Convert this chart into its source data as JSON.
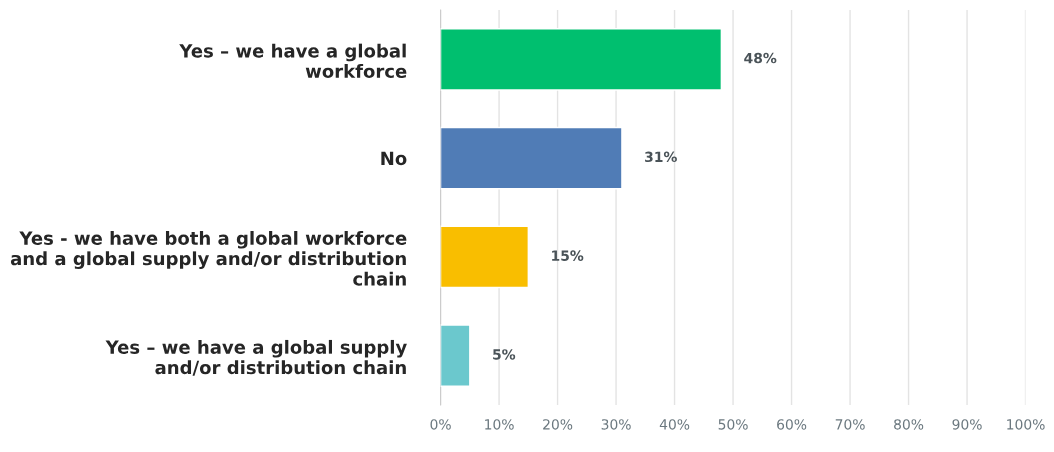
{
  "chart_data": {
    "type": "bar",
    "orientation": "horizontal",
    "categories": [
      "Yes – we have a global\nworkforce",
      "No",
      "Yes - we have both a global workforce\nand a global supply and/or distribution\nchain",
      "Yes – we have a global supply\nand/or distribution chain"
    ],
    "values": [
      48,
      31,
      15,
      5
    ],
    "colors": [
      "#00bf6f",
      "#507cb6",
      "#f9be00",
      "#6bc8cd"
    ],
    "value_labels": [
      "48%",
      "31%",
      "15%",
      "5%"
    ],
    "xlim": [
      0,
      100
    ],
    "xticks": [
      {
        "value": 0,
        "label": "0%"
      },
      {
        "value": 10,
        "label": "10%"
      },
      {
        "value": 20,
        "label": "20%"
      },
      {
        "value": 30,
        "label": "30%"
      },
      {
        "value": 40,
        "label": "40%"
      },
      {
        "value": 50,
        "label": "50%"
      },
      {
        "value": 60,
        "label": "60%"
      },
      {
        "value": 70,
        "label": "70%"
      },
      {
        "value": 80,
        "label": "80%"
      },
      {
        "value": 90,
        "label": "90%"
      },
      {
        "value": 100,
        "label": "100%"
      }
    ],
    "grid": "x",
    "legend": false
  }
}
